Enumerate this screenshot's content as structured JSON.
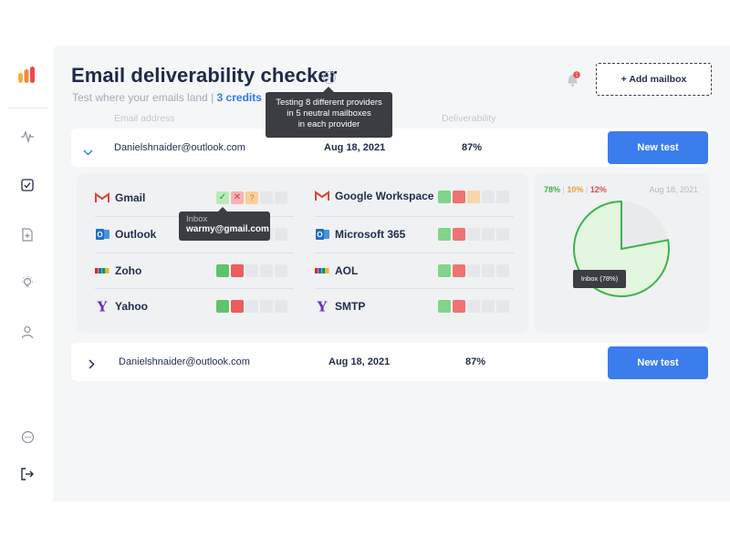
{
  "sidebar": {
    "logo": "app-logo",
    "nav": [
      "activity-icon",
      "checklist-icon",
      "document-icon",
      "lightbulb-icon",
      "user-icon"
    ],
    "bottom": [
      "chat-icon",
      "logout-icon"
    ]
  },
  "header": {
    "title": "Email deliverability checker",
    "subtitle": "Test where your emails land",
    "separator": "|",
    "credits": "3 credits left",
    "help_tooltip": [
      "Testing 8 different providers",
      "in 5 neutral mailboxes",
      "in each provider"
    ],
    "notification_count": "1",
    "add_mailbox_label": "+ Add mailbox"
  },
  "table": {
    "columns": [
      "Email address",
      "Deliverability"
    ],
    "rows": [
      {
        "email": "Danielshnaider@outlook.com",
        "date": "Aug 18, 2021",
        "deliverability": "87%",
        "action": "New test",
        "expanded": true
      },
      {
        "email": "Danielshnaider@outlook.com",
        "date": "Aug 18, 2021",
        "deliverability": "87%",
        "action": "New test",
        "expanded": false
      }
    ]
  },
  "providers": {
    "left": [
      {
        "name": "Gmail",
        "icon": "gmail-icon",
        "cells": [
          "lg",
          "lr",
          "lo",
          "e",
          "e"
        ]
      },
      {
        "name": "Outlook",
        "icon": "outlook-icon",
        "cells": [
          "g",
          "r",
          "e",
          "e",
          "e"
        ]
      },
      {
        "name": "Zoho",
        "icon": "zoho-icon",
        "cells": [
          "g",
          "r",
          "e",
          "e",
          "e"
        ]
      },
      {
        "name": "Yahoo",
        "icon": "yahoo-icon",
        "cells": [
          "g",
          "r",
          "e",
          "e",
          "e"
        ]
      }
    ],
    "right": [
      {
        "name": "Google Workspace",
        "icon": "gmail-icon",
        "cells": [
          "mg",
          "mr",
          "o",
          "e",
          "e"
        ]
      },
      {
        "name": "Microsoft 365",
        "icon": "outlook-icon",
        "cells": [
          "mg",
          "mr",
          "e",
          "e",
          "e"
        ]
      },
      {
        "name": "AOL",
        "icon": "zoho-icon",
        "cells": [
          "mg",
          "mr",
          "e",
          "e",
          "e"
        ]
      },
      {
        "name": "SMTP",
        "icon": "yahoo-icon",
        "cells": [
          "mg",
          "mr",
          "e",
          "e",
          "e"
        ]
      }
    ],
    "cell_tooltip": {
      "label": "Inbox",
      "value": "warmy@gmail.com"
    }
  },
  "summary": {
    "inbox_pct": "78%",
    "other_pct": "10%",
    "spam_pct": "12%",
    "sep": "|",
    "date": "Aug 18, 2021",
    "pie_tooltip": "Inbox (78%)",
    "colors": {
      "inbox": "#3cb54a",
      "other": "#f0a030",
      "spam": "#e84a4a",
      "inbox_fill": "#e3f6df",
      "rest_fill": "#e9eaec"
    },
    "inbox_fraction": 0.78
  },
  "colors": {
    "accent": "#3b7ded",
    "credits": "#2f7ae5",
    "title": "#1e2a47"
  }
}
